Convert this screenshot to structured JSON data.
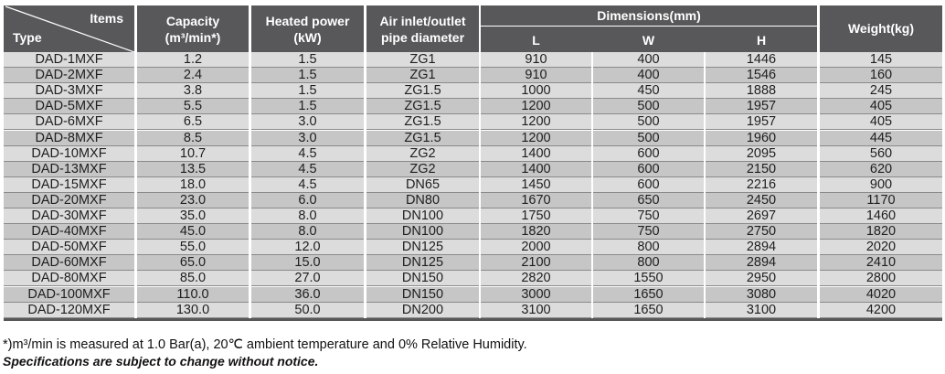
{
  "table": {
    "header": {
      "type_items": {
        "items": "Items",
        "type": "Type"
      },
      "capacity": [
        "Capacity",
        "(m³/min*)"
      ],
      "heated_power": [
        "Heated power",
        "(kW)"
      ],
      "pipe": [
        "Air inlet/outlet",
        "pipe diameter"
      ],
      "dimensions": "Dimensions(mm)",
      "dim_l": "L",
      "dim_w": "W",
      "dim_h": "H",
      "weight": "Weight(kg)"
    },
    "rows": [
      [
        "DAD-1MXF",
        "1.2",
        "1.5",
        "ZG1",
        "910",
        "400",
        "1446",
        "145"
      ],
      [
        "DAD-2MXF",
        "2.4",
        "1.5",
        "ZG1",
        "910",
        "400",
        "1546",
        "160"
      ],
      [
        "DAD-3MXF",
        "3.8",
        "1.5",
        "ZG1.5",
        "1000",
        "450",
        "1888",
        "245"
      ],
      [
        "DAD-5MXF",
        "5.5",
        "1.5",
        "ZG1.5",
        "1200",
        "500",
        "1957",
        "405"
      ],
      [
        "DAD-6MXF",
        "6.5",
        "3.0",
        "ZG1.5",
        "1200",
        "500",
        "1957",
        "405"
      ],
      [
        "DAD-8MXF",
        "8.5",
        "3.0",
        "ZG1.5",
        "1200",
        "500",
        "1960",
        "445"
      ],
      [
        "DAD-10MXF",
        "10.7",
        "4.5",
        "ZG2",
        "1400",
        "600",
        "2095",
        "560"
      ],
      [
        "DAD-13MXF",
        "13.5",
        "4.5",
        "ZG2",
        "1400",
        "600",
        "2150",
        "620"
      ],
      [
        "DAD-15MXF",
        "18.0",
        "4.5",
        "DN65",
        "1450",
        "600",
        "2216",
        "900"
      ],
      [
        "DAD-20MXF",
        "23.0",
        "6.0",
        "DN80",
        "1670",
        "650",
        "2450",
        "1170"
      ],
      [
        "DAD-30MXF",
        "35.0",
        "8.0",
        "DN100",
        "1750",
        "750",
        "2697",
        "1460"
      ],
      [
        "DAD-40MXF",
        "45.0",
        "8.0",
        "DN100",
        "1820",
        "750",
        "2750",
        "1820"
      ],
      [
        "DAD-50MXF",
        "55.0",
        "12.0",
        "DN125",
        "2000",
        "800",
        "2894",
        "2020"
      ],
      [
        "DAD-60MXF",
        "65.0",
        "15.0",
        "DN125",
        "2100",
        "800",
        "2894",
        "2410"
      ],
      [
        "DAD-80MXF",
        "85.0",
        "27.0",
        "DN150",
        "2820",
        "1550",
        "2950",
        "2800"
      ],
      [
        "DAD-100MXF",
        "110.0",
        "36.0",
        "DN150",
        "3000",
        "1650",
        "3080",
        "4020"
      ],
      [
        "DAD-120MXF",
        "130.0",
        "50.0",
        "DN200",
        "3100",
        "1650",
        "3100",
        "4200"
      ]
    ]
  },
  "notes": {
    "measurement": "*)m³/min is measured at 1.0 Bar(a), 20℃ ambient temperature and 0% Relative Humidity.",
    "disclaimer": "Specifications are subject to change without notice."
  },
  "colors": {
    "header_bg": "#58585a",
    "row_light": "#dcdcdc",
    "row_dark": "#c6c6c6"
  }
}
